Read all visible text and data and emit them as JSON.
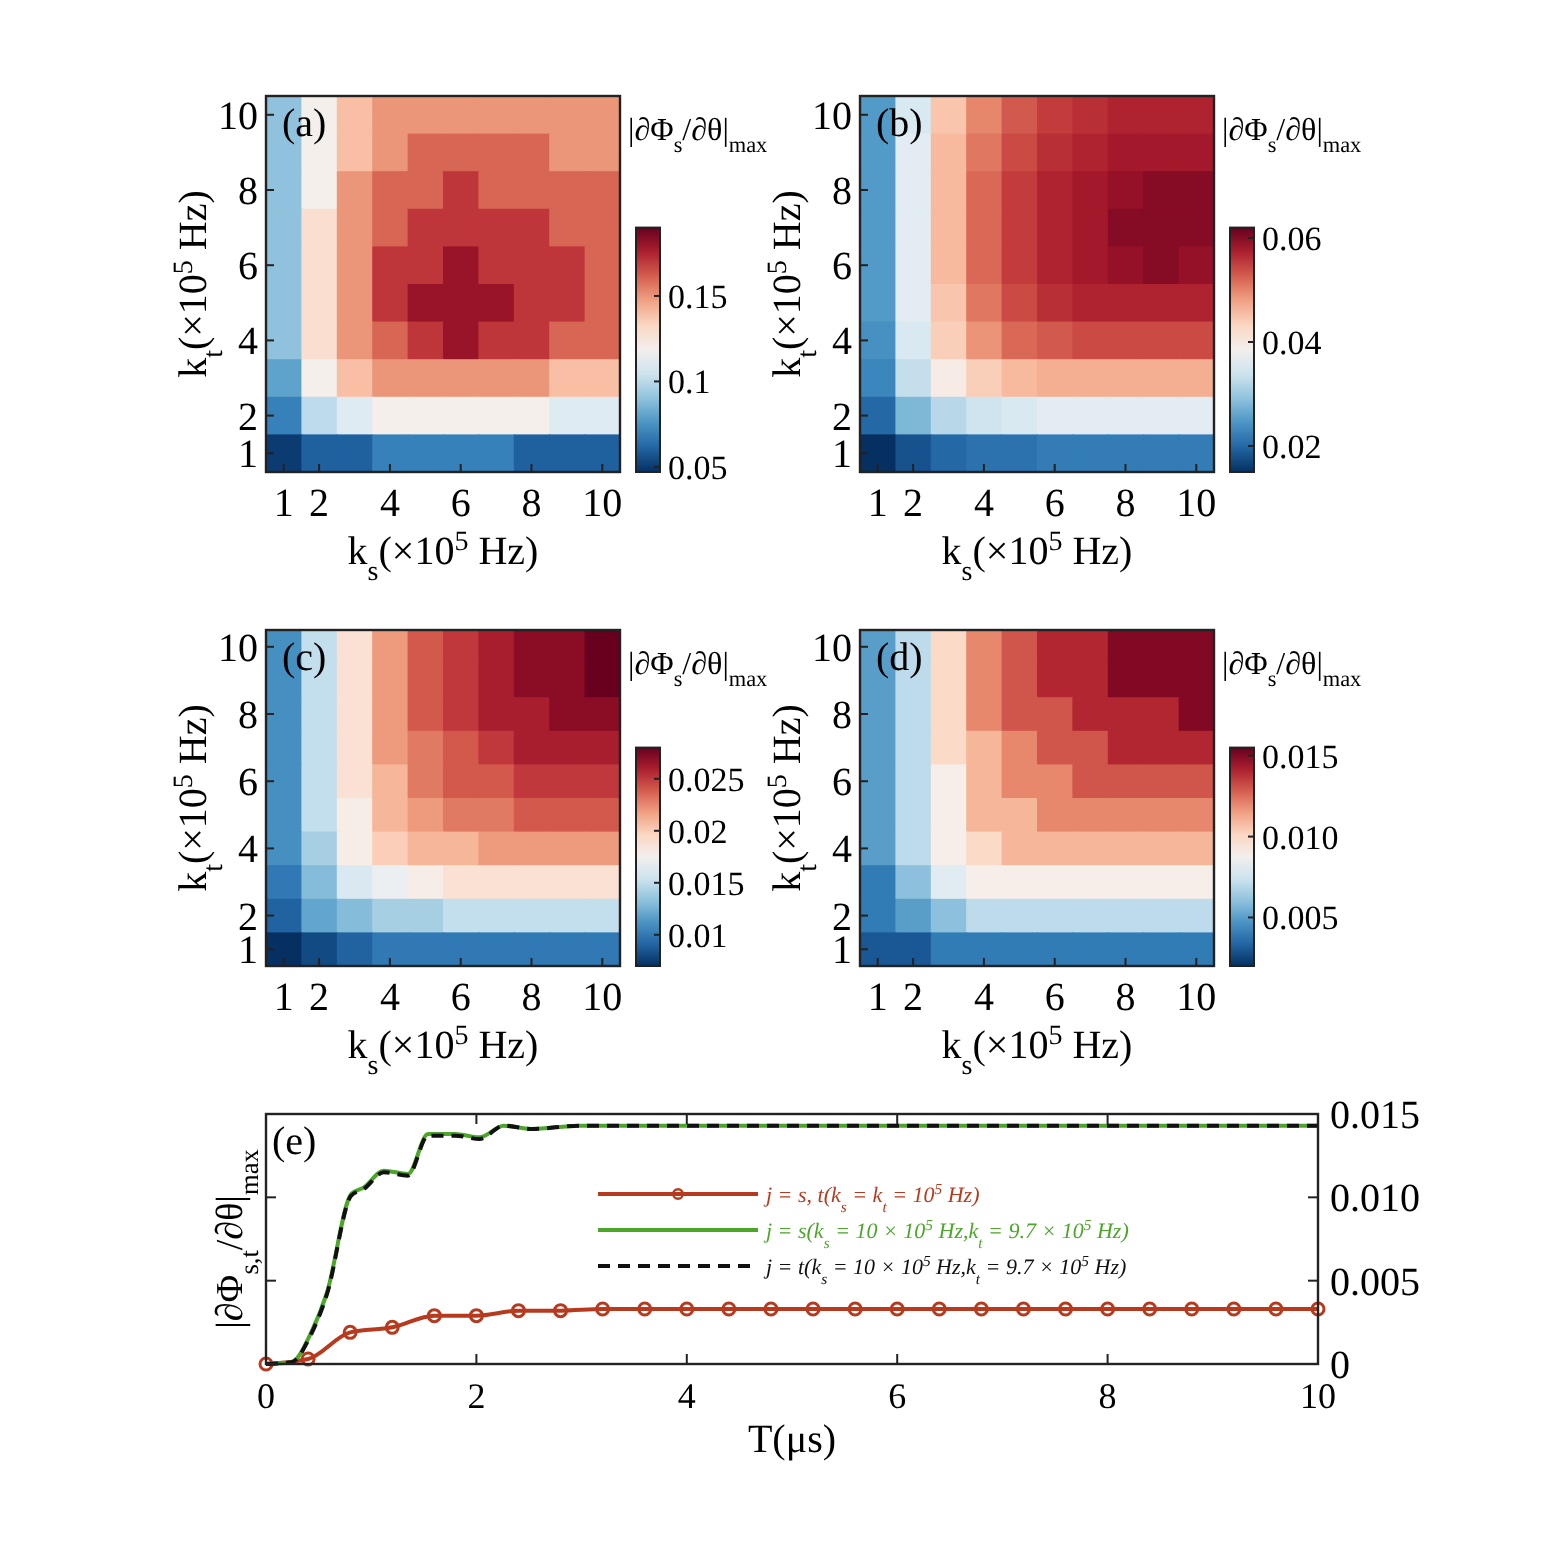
{
  "chart_data": [
    {
      "type": "heatmap",
      "title": "(a)",
      "xlabel": "k$_{s}$(×10$^{5}$ Hz)",
      "ylabel": "k$_{t}$(×10$^{5}$ Hz)",
      "clabel": "|∂Φ$_{s}$/∂θ|$_{max}$",
      "categories": [
        "1",
        "2",
        null,
        "4",
        null,
        "6",
        null,
        "8",
        null,
        "10"
      ],
      "y_categories": [
        "10",
        null,
        "8",
        null,
        "6",
        null,
        "4",
        null,
        "2",
        "1"
      ],
      "cells": [
        [
          0.09,
          0.12,
          0.14,
          0.15,
          0.15,
          0.15,
          0.15,
          0.15,
          0.15,
          0.15
        ],
        [
          0.09,
          0.12,
          0.14,
          0.15,
          0.16,
          0.16,
          0.16,
          0.16,
          0.15,
          0.15
        ],
        [
          0.09,
          0.12,
          0.15,
          0.16,
          0.16,
          0.17,
          0.16,
          0.16,
          0.16,
          0.16
        ],
        [
          0.09,
          0.13,
          0.15,
          0.16,
          0.17,
          0.17,
          0.17,
          0.17,
          0.16,
          0.16
        ],
        [
          0.09,
          0.13,
          0.15,
          0.17,
          0.17,
          0.18,
          0.17,
          0.17,
          0.17,
          0.16
        ],
        [
          0.09,
          0.13,
          0.15,
          0.17,
          0.18,
          0.18,
          0.18,
          0.17,
          0.17,
          0.16
        ],
        [
          0.09,
          0.13,
          0.15,
          0.16,
          0.17,
          0.18,
          0.17,
          0.17,
          0.16,
          0.16
        ],
        [
          0.08,
          0.12,
          0.14,
          0.15,
          0.15,
          0.15,
          0.15,
          0.15,
          0.14,
          0.14
        ],
        [
          0.07,
          0.1,
          0.11,
          0.12,
          0.12,
          0.12,
          0.12,
          0.12,
          0.11,
          0.11
        ],
        [
          0.05,
          0.06,
          0.06,
          0.07,
          0.07,
          0.07,
          0.07,
          0.06,
          0.06,
          0.06
        ]
      ],
      "clim": [
        0.047,
        0.19
      ],
      "cticks": [
        {
          "value": 0.05,
          "label": "0.05"
        },
        {
          "value": 0.1,
          "label": "0.1"
        },
        {
          "value": 0.15,
          "label": "0.15"
        }
      ]
    },
    {
      "type": "heatmap",
      "title": "(b)",
      "xlabel": "k$_{s}$(×10$^{5}$ Hz)",
      "ylabel": "k$_{t}$(×10$^{5}$ Hz)",
      "clabel": "|∂Φ$_{s}$/∂θ|$_{max}$",
      "categories": [
        "1",
        "2",
        null,
        "4",
        null,
        "6",
        null,
        "8",
        null,
        "10"
      ],
      "y_categories": [
        "10",
        null,
        "8",
        null,
        "6",
        null,
        "4",
        null,
        "2",
        "1"
      ],
      "cells": [
        [
          0.025,
          0.035,
          0.045,
          0.05,
          0.053,
          0.055,
          0.056,
          0.057,
          0.057,
          0.057
        ],
        [
          0.025,
          0.036,
          0.046,
          0.051,
          0.054,
          0.056,
          0.057,
          0.058,
          0.058,
          0.058
        ],
        [
          0.025,
          0.036,
          0.046,
          0.052,
          0.055,
          0.057,
          0.058,
          0.059,
          0.06,
          0.06
        ],
        [
          0.025,
          0.036,
          0.046,
          0.052,
          0.055,
          0.057,
          0.058,
          0.06,
          0.06,
          0.06
        ],
        [
          0.025,
          0.036,
          0.046,
          0.052,
          0.055,
          0.057,
          0.058,
          0.059,
          0.06,
          0.059
        ],
        [
          0.025,
          0.036,
          0.045,
          0.051,
          0.054,
          0.056,
          0.057,
          0.057,
          0.057,
          0.057
        ],
        [
          0.024,
          0.035,
          0.044,
          0.049,
          0.052,
          0.053,
          0.054,
          0.054,
          0.054,
          0.054
        ],
        [
          0.023,
          0.033,
          0.04,
          0.044,
          0.046,
          0.047,
          0.047,
          0.047,
          0.047,
          0.047
        ],
        [
          0.02,
          0.028,
          0.032,
          0.034,
          0.035,
          0.036,
          0.036,
          0.036,
          0.036,
          0.036
        ],
        [
          0.015,
          0.018,
          0.02,
          0.021,
          0.021,
          0.022,
          0.022,
          0.022,
          0.022,
          0.022
        ]
      ],
      "clim": [
        0.015,
        0.062
      ],
      "cticks": [
        {
          "value": 0.02,
          "label": "0.02"
        },
        {
          "value": 0.04,
          "label": "0.04"
        },
        {
          "value": 0.06,
          "label": "0.06"
        }
      ]
    },
    {
      "type": "heatmap",
      "title": "(c)",
      "xlabel": "k$_{s}$(×10$^{5}$ Hz)",
      "ylabel": "k$_{t}$(×10$^{5}$ Hz)",
      "clabel": "|∂Φ$_{s}$/∂θ|$_{max}$",
      "categories": [
        "1",
        "2",
        null,
        "4",
        null,
        "6",
        null,
        "8",
        null,
        "10"
      ],
      "y_categories": [
        "10",
        null,
        "8",
        null,
        "6",
        null,
        "4",
        null,
        "2",
        "1"
      ],
      "cells": [
        [
          0.011,
          0.015,
          0.019,
          0.022,
          0.024,
          0.025,
          0.026,
          0.027,
          0.027,
          0.028
        ],
        [
          0.011,
          0.015,
          0.019,
          0.022,
          0.024,
          0.025,
          0.026,
          0.027,
          0.027,
          0.028
        ],
        [
          0.011,
          0.015,
          0.019,
          0.022,
          0.024,
          0.025,
          0.026,
          0.026,
          0.027,
          0.027
        ],
        [
          0.011,
          0.015,
          0.019,
          0.022,
          0.023,
          0.024,
          0.025,
          0.026,
          0.026,
          0.026
        ],
        [
          0.011,
          0.015,
          0.019,
          0.021,
          0.023,
          0.024,
          0.024,
          0.025,
          0.025,
          0.025
        ],
        [
          0.011,
          0.015,
          0.018,
          0.021,
          0.022,
          0.023,
          0.023,
          0.024,
          0.024,
          0.024
        ],
        [
          0.011,
          0.014,
          0.018,
          0.02,
          0.021,
          0.021,
          0.022,
          0.022,
          0.022,
          0.022
        ],
        [
          0.01,
          0.013,
          0.016,
          0.017,
          0.018,
          0.019,
          0.019,
          0.019,
          0.019,
          0.019
        ],
        [
          0.009,
          0.012,
          0.013,
          0.014,
          0.014,
          0.015,
          0.015,
          0.015,
          0.015,
          0.015
        ],
        [
          0.007,
          0.008,
          0.009,
          0.01,
          0.01,
          0.01,
          0.01,
          0.01,
          0.01,
          0.01
        ]
      ],
      "clim": [
        0.007,
        0.028
      ],
      "cticks": [
        {
          "value": 0.01,
          "label": "0.01"
        },
        {
          "value": 0.015,
          "label": "0.015"
        },
        {
          "value": 0.02,
          "label": "0.02"
        },
        {
          "value": 0.025,
          "label": "0.025"
        }
      ]
    },
    {
      "type": "heatmap",
      "title": "(d)",
      "xlabel": "k$_{s}$(×10$^{5}$ Hz)",
      "ylabel": "k$_{t}$(×10$^{5}$ Hz)",
      "clabel": "|∂Φ$_{s}$/∂θ|$_{max}$",
      "categories": [
        "1",
        "2",
        null,
        "4",
        null,
        "6",
        null,
        "8",
        null,
        "10"
      ],
      "y_categories": [
        "10",
        null,
        "8",
        null,
        "6",
        null,
        "4",
        null,
        "2",
        "1"
      ],
      "cells": [
        [
          0.005,
          0.007,
          0.01,
          0.012,
          0.013,
          0.014,
          0.014,
          0.015,
          0.015,
          0.015
        ],
        [
          0.005,
          0.007,
          0.01,
          0.012,
          0.013,
          0.014,
          0.014,
          0.015,
          0.015,
          0.015
        ],
        [
          0.005,
          0.007,
          0.01,
          0.012,
          0.013,
          0.013,
          0.014,
          0.014,
          0.014,
          0.015
        ],
        [
          0.005,
          0.007,
          0.01,
          0.011,
          0.012,
          0.013,
          0.013,
          0.014,
          0.014,
          0.014
        ],
        [
          0.005,
          0.007,
          0.009,
          0.011,
          0.012,
          0.012,
          0.013,
          0.013,
          0.013,
          0.013
        ],
        [
          0.005,
          0.007,
          0.009,
          0.011,
          0.011,
          0.012,
          0.012,
          0.012,
          0.012,
          0.012
        ],
        [
          0.005,
          0.007,
          0.009,
          0.01,
          0.011,
          0.011,
          0.011,
          0.011,
          0.011,
          0.011
        ],
        [
          0.004,
          0.006,
          0.008,
          0.009,
          0.009,
          0.009,
          0.009,
          0.009,
          0.009,
          0.009
        ],
        [
          0.004,
          0.005,
          0.006,
          0.007,
          0.007,
          0.007,
          0.007,
          0.007,
          0.007,
          0.007
        ],
        [
          0.003,
          0.003,
          0.004,
          0.004,
          0.004,
          0.004,
          0.004,
          0.004,
          0.004,
          0.004
        ]
      ],
      "clim": [
        0.002,
        0.0155
      ],
      "cticks": [
        {
          "value": 0.005,
          "label": "0.005"
        },
        {
          "value": 0.01,
          "label": "0.010"
        },
        {
          "value": 0.015,
          "label": "0.015"
        }
      ]
    },
    {
      "type": "line",
      "title": "(e)",
      "xlabel": "T(μs)",
      "ylabel": "|∂Φ$_{s,t}$/∂θ|$_{max}$",
      "xlim": [
        0,
        10
      ],
      "xticks": [
        0,
        2,
        4,
        6,
        8,
        10
      ],
      "ylim": [
        0,
        0.015
      ],
      "yticks": [
        {
          "value": 0,
          "label": "0"
        },
        {
          "value": 0.005,
          "label": "0.005"
        },
        {
          "value": 0.01,
          "label": "0.010"
        },
        {
          "value": 0.015,
          "label": "0.015"
        }
      ],
      "legend": "top right",
      "grid": false,
      "series": [
        {
          "name": "j = s, t(k$_{s}$ = k$_{t}$ = 10$^{5}$ Hz)",
          "color": "#b83a1e",
          "marker": "circle",
          "line_style": "solid",
          "x": [
            0,
            0.4,
            0.8,
            1.2,
            1.6,
            2.0,
            2.4,
            2.8,
            3.2,
            3.6,
            4.0,
            4.4,
            4.8,
            5.2,
            5.6,
            6.0,
            6.4,
            6.8,
            7.2,
            7.6,
            8.0,
            8.4,
            8.8,
            9.2,
            9.6,
            10
          ],
          "values": [
            0,
            0.0003,
            0.0019,
            0.0022,
            0.0029,
            0.0029,
            0.0032,
            0.0032,
            0.0033,
            0.0033,
            0.0033,
            0.0033,
            0.0033,
            0.0033,
            0.0033,
            0.0033,
            0.0033,
            0.0033,
            0.0033,
            0.0033,
            0.0033,
            0.0033,
            0.0033,
            0.0033,
            0.0033,
            0.0033
          ]
        },
        {
          "name": "j = s(k$_{s}$ = 10 × 10$^{5}$ Hz,k$_{t}$ = 9.7 × 10$^{5}$ Hz)",
          "color": "#4ca62a",
          "marker": "none",
          "line_style": "solid",
          "x": [
            0,
            0.24,
            0.43,
            0.58,
            0.81,
            0.93,
            1.12,
            1.35,
            1.54,
            1.8,
            2.03,
            2.26,
            2.52,
            2.98,
            4,
            6,
            8,
            10
          ],
          "values": [
            0,
            0.0001,
            0.0019,
            0.0043,
            0.0102,
            0.0106,
            0.0116,
            0.0114,
            0.0138,
            0.0138,
            0.0136,
            0.0143,
            0.0141,
            0.0143,
            0.0143,
            0.0143,
            0.0143,
            0.0143
          ]
        },
        {
          "name": "j = t(k$_{s}$ = 10 × 10$^{5}$ Hz,k$_{t}$ = 9.7 × 10$^{5}$ Hz)",
          "color": "#111111",
          "marker": "none",
          "line_style": "dashed",
          "x": [
            0,
            0.24,
            0.43,
            0.58,
            0.81,
            0.93,
            1.12,
            1.35,
            1.54,
            1.8,
            2.03,
            2.26,
            2.52,
            2.98,
            4,
            6,
            8,
            10
          ],
          "values": [
            0,
            0.0001,
            0.0018,
            0.0042,
            0.0101,
            0.0105,
            0.0115,
            0.0113,
            0.0137,
            0.0137,
            0.0135,
            0.0143,
            0.0141,
            0.0143,
            0.0143,
            0.0143,
            0.0143,
            0.0143
          ]
        }
      ]
    }
  ]
}
